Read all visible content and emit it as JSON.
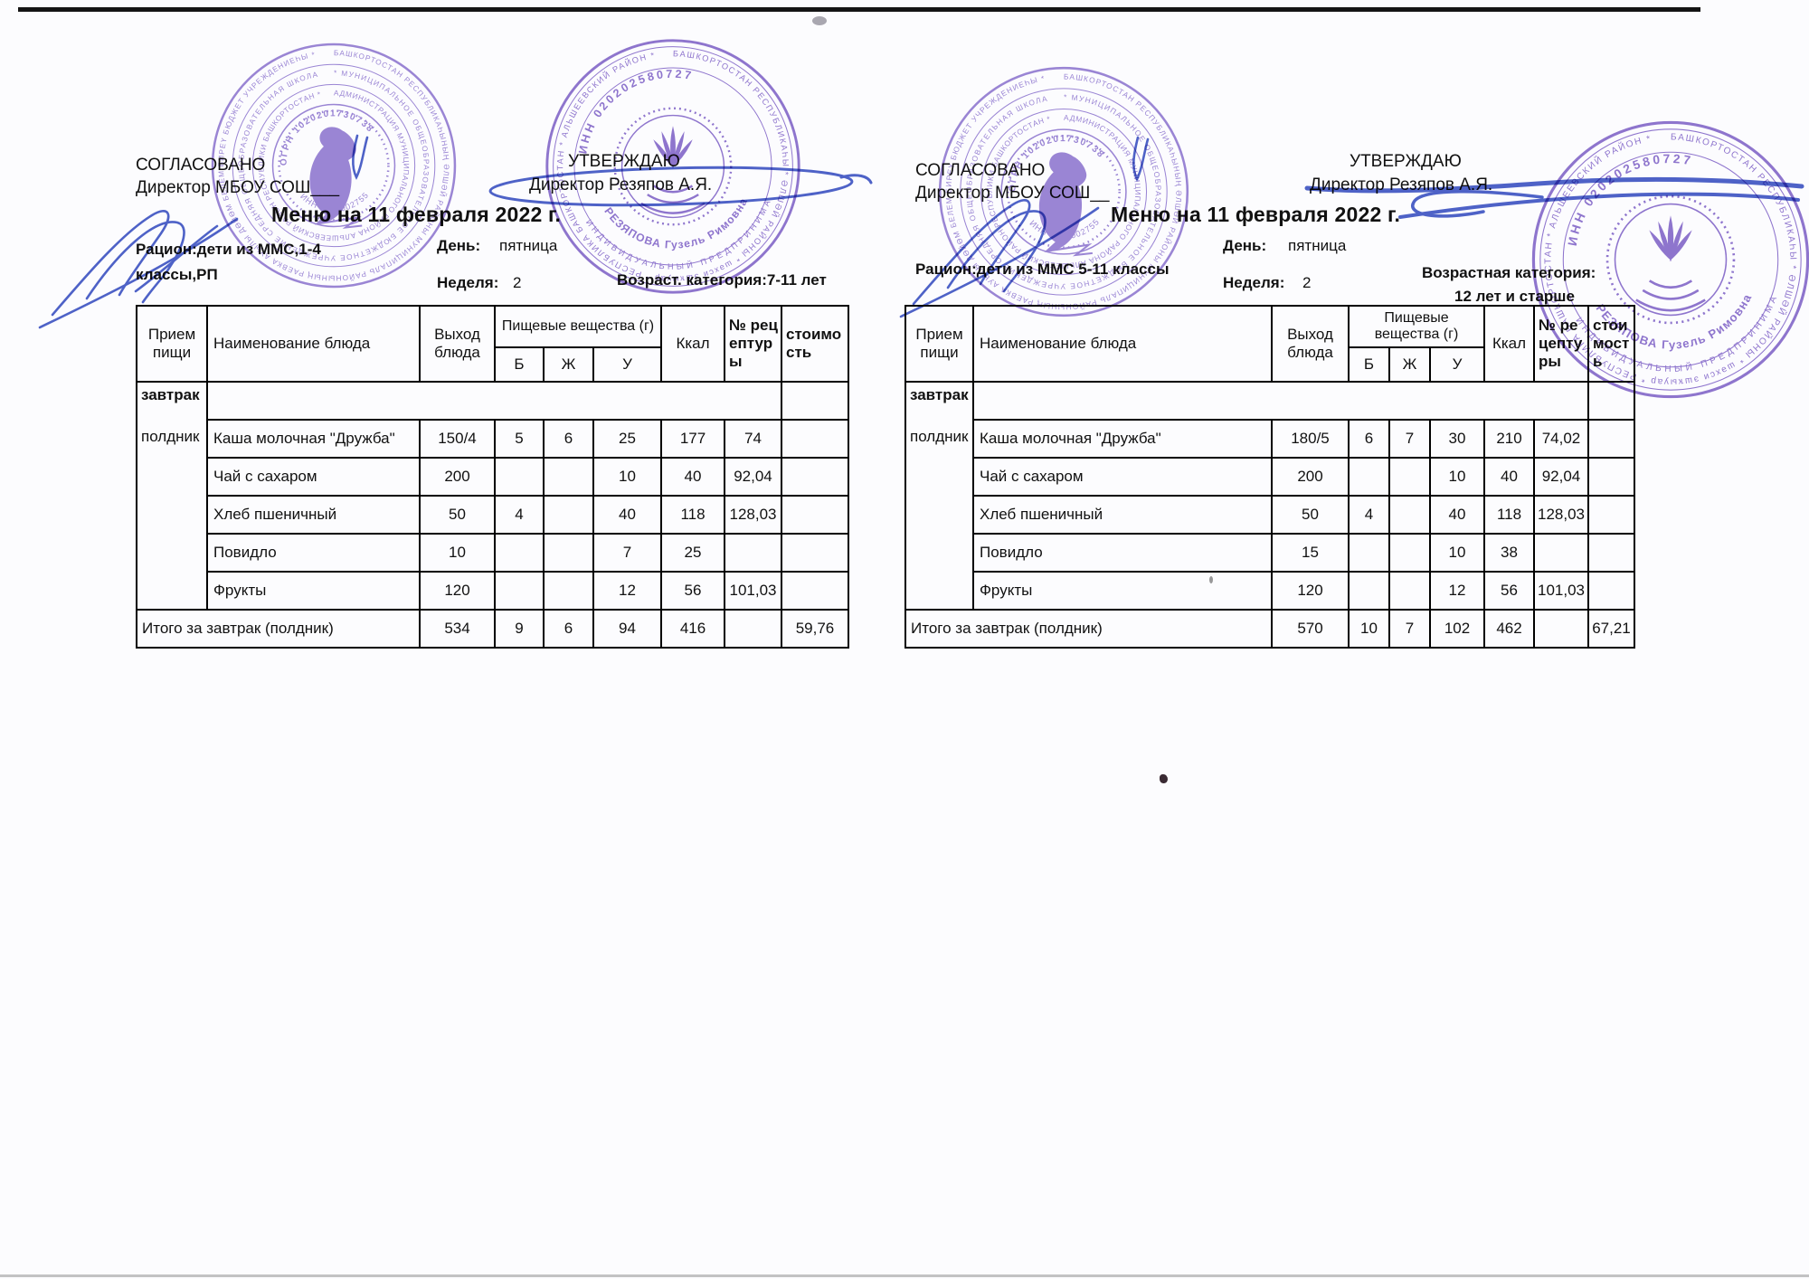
{
  "stamps": {
    "color_school": "#8b72ce",
    "color_entrepreneur": "#7d5ec6",
    "school": {
      "ring1": "БАШКОРТОСТАН РЕСПУБЛИКАҺЫНЫҢ ӘЛШӘЙ РАЙОНЫ МУНИЦИПАЛЬ РАЙОНЫНЫҢ РАЕВКА АУЫЛЫ ДӨЙӨМ БЕЛЕМ БИРЕҮ БЮДЖЕТ УЧРЕЖДЕНИЕҺЫ *",
      "ring2": "* МУНИЦИПАЛЬНОЕ ОБЩЕОБРАЗОВАТЕЛЬНОЕ БЮДЖЕТНОЕ УЧРЕЖДЕНИЕ СРЕДНЯЯ ОБЩЕОБРАЗОВАТЕЛЬНАЯ ШКОЛА",
      "ring3": "АДМИНИСТРАЦИЯ МУНИЦИПАЛЬНОГО РАЙОНА АЛЬШЕЕВСКИЙ РАЙОН РЕСПУБЛИКИ БАШКОРТОСТАН *",
      "ogrn": "ОГРН 1020201730738",
      "inn": "ИНН 0202002755"
    },
    "entrepreneur": {
      "ring1": "БАШКОРТОСТАН РЕСПУБЛИКАҺЫ * ӘЛШӘЙ РАЙОНЫ * шәхси эшҡыуар * РЕСПУБЛИКА БАШКОРТОСТАН * АЛЬШЕЕВСКИЙ РАЙОН *",
      "inn": "ИНН 020202580727",
      "occupation": "ИНДИВИДУАЛЬНЫЙ ПРЕДПРИНИМАТЕЛЬ",
      "name": "РЕЗЯПОВА Гузель Римовна"
    }
  },
  "menus": [
    {
      "approvals": {
        "agreed": "СОГЛАСОВАНО",
        "agreed_by": "Директор МБОУ СОШ___",
        "approved": "УТВЕРЖДАЮ",
        "approved_by": "Директор Резяпов А.Я."
      },
      "title": "Меню на 11 февраля  2022 г.",
      "meta": {
        "ration_line1": "Рацион:дети из ММС,1-4",
        "ration_line2": "классы,РП",
        "day_label": "День:",
        "day": "пятница",
        "week_label": "Неделя:",
        "week": "2",
        "age_line1": "Возраст. категория:7-11 лет",
        "age_line2": ""
      },
      "table": {
        "headers": {
          "meal": "Прием пищи",
          "dish": "Наименование блюда",
          "output": "Выход блюда",
          "nutrients": "Пищевые вещества (г)",
          "protein": "Б",
          "fat": "Ж",
          "carbs": "У",
          "kcal": "Ккал",
          "recipe": "№ рецептуры",
          "cost": "стоимость"
        },
        "meals": {
          "breakfast": "завтрак",
          "snack": "полдник"
        },
        "rows": [
          [
            "Каша молочная \"Дружба\"",
            "150/4",
            "5",
            "6",
            "25",
            "177",
            "74",
            ""
          ],
          [
            "Чай с сахаром",
            "200",
            "",
            "",
            "10",
            "40",
            "92,04",
            ""
          ],
          [
            "Хлеб пшеничный",
            "50",
            "4",
            "",
            "40",
            "118",
            "128,03",
            ""
          ],
          [
            "Повидло",
            "10",
            "",
            "",
            "7",
            "25",
            "",
            ""
          ],
          [
            "Фрукты",
            "120",
            "",
            "",
            "12",
            "56",
            "101,03",
            ""
          ]
        ],
        "total_label": "Итого за завтрак (полдник)",
        "total": [
          "534",
          "9",
          "6",
          "94",
          "416",
          "",
          "59,76"
        ]
      }
    },
    {
      "approvals": {
        "agreed": "СОГЛАСОВАНО",
        "agreed_by": "Директор МБОУ СОШ__",
        "approved": "УТВЕРЖДАЮ",
        "approved_by": "Директор Резяпов А.Я."
      },
      "title": "Меню на 11 февраля  2022 г.",
      "meta": {
        "ration_line1": "Рацион:дети из ММС 5-11 классы",
        "ration_line2": "",
        "day_label": "День:",
        "day": "пятница",
        "week_label": "Неделя:",
        "week": "2",
        "age_line1": "Возрастная категория:",
        "age_line2": "12 лет и старше"
      },
      "table": {
        "headers": {
          "meal": "Прием пищи",
          "dish": "Наименование блюда",
          "output": "Выход блюда",
          "nutrients": "Пищевые вещества (г)",
          "protein": "Б",
          "fat": "Ж",
          "carbs": "У",
          "kcal": "Ккал",
          "recipe": "№ рецептуры",
          "cost": "стоимость"
        },
        "meals": {
          "breakfast": "завтрак",
          "snack": "полдник"
        },
        "rows": [
          [
            "Каша молочная \"Дружба\"",
            "180/5",
            "6",
            "7",
            "30",
            "210",
            "74,02",
            ""
          ],
          [
            "Чай с сахаром",
            "200",
            "",
            "",
            "10",
            "40",
            "92,04",
            ""
          ],
          [
            "Хлеб пшеничный",
            "50",
            "4",
            "",
            "40",
            "118",
            "128,03",
            ""
          ],
          [
            "Повидло",
            "15",
            "",
            "",
            "10",
            "38",
            "",
            ""
          ],
          [
            "Фрукты",
            "120",
            "",
            "",
            "12",
            "56",
            "101,03",
            ""
          ]
        ],
        "total_label": "Итого за завтрак (полдник)",
        "total": [
          "570",
          "10",
          "7",
          "102",
          "462",
          "",
          "67,21"
        ]
      }
    }
  ]
}
